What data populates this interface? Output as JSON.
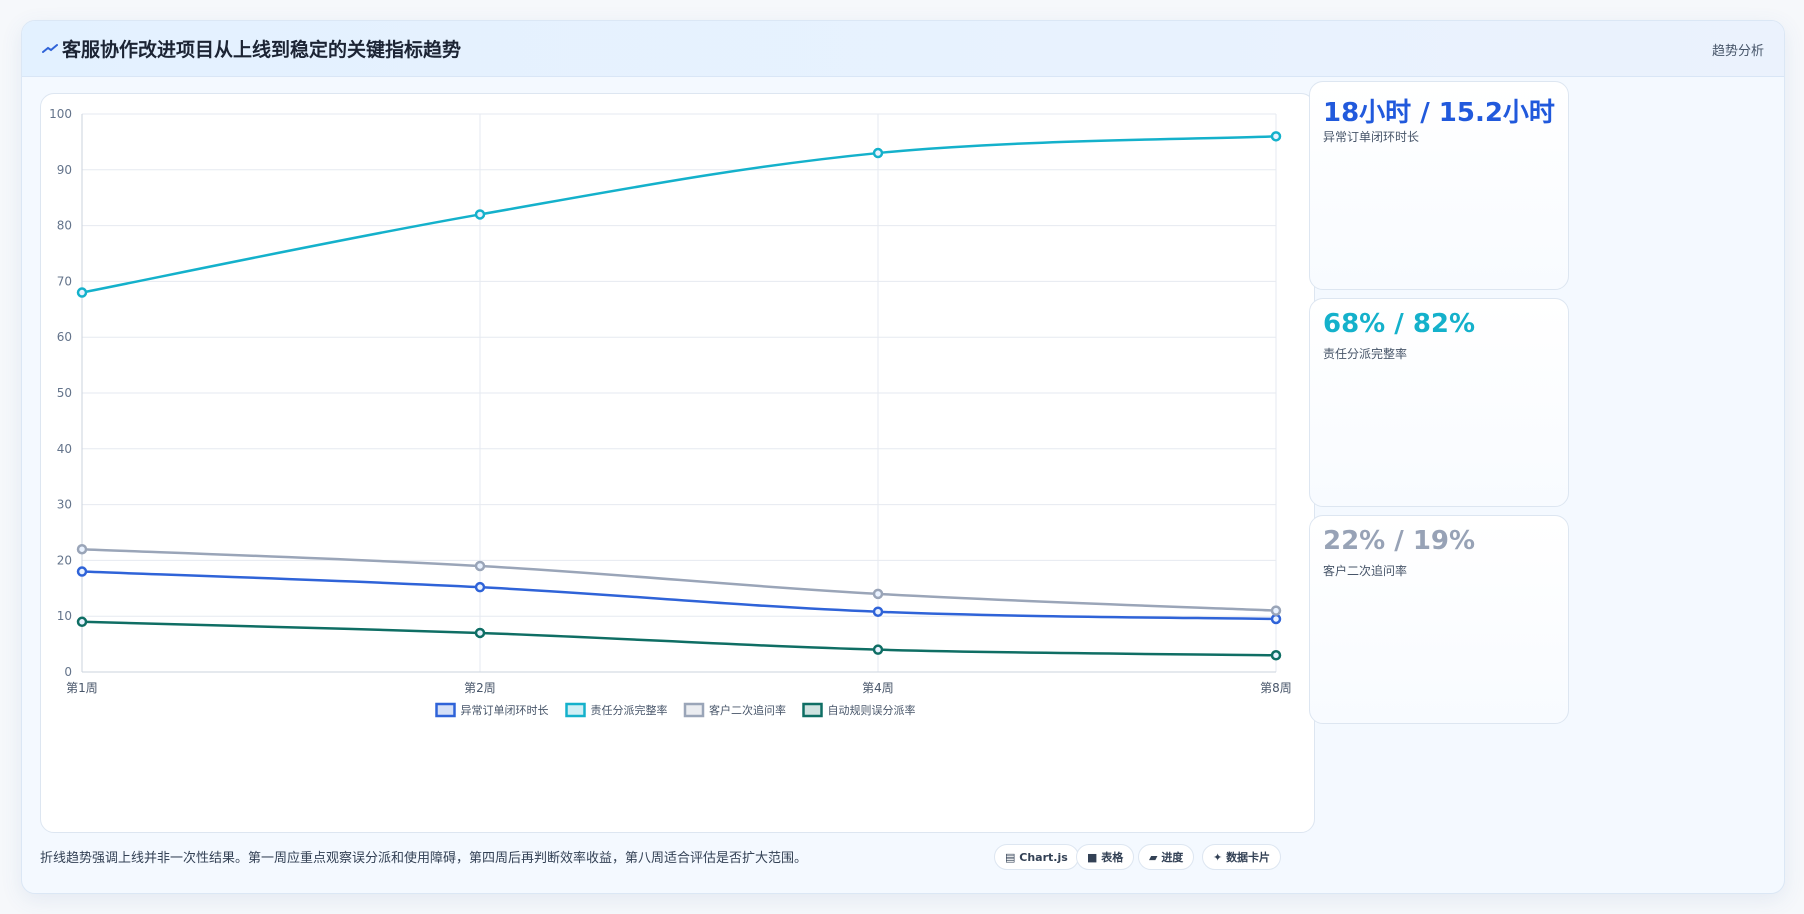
{
  "header": {
    "icon": "chart-line-icon",
    "title": "客服协作改进项目从上线到稳定的关键指标趋势",
    "right_label": "趋势分析"
  },
  "chart_data": {
    "type": "line",
    "categories": [
      "第1周",
      "第2周",
      "第4周",
      "第8周"
    ],
    "ylim": [
      0,
      100
    ],
    "yticks": [
      0,
      10,
      20,
      30,
      40,
      50,
      60,
      70,
      80,
      90,
      100
    ],
    "grid": true,
    "legend_position": "bottom",
    "series": [
      {
        "name": "异常订单闭环时长",
        "color": "#2f63d8",
        "values": [
          18,
          15.2,
          10.8,
          9.5
        ]
      },
      {
        "name": "责任分派完整率",
        "color": "#14b1cb",
        "values": [
          68,
          82,
          93,
          96
        ]
      },
      {
        "name": "客户二次追问率",
        "color": "#9aa5b8",
        "values": [
          22,
          19,
          14,
          11
        ]
      },
      {
        "name": "自动规则误分派率",
        "color": "#0f6e64",
        "values": [
          9,
          7,
          4,
          3
        ]
      }
    ]
  },
  "kpis": [
    {
      "value": "18小时 / 15.2小时",
      "label": "异常订单闭环时长",
      "color": "#2159dc"
    },
    {
      "value": "68% / 82%",
      "label": "责任分派完整率",
      "color": "#14b1cb"
    },
    {
      "value": "22% / 19%",
      "label": "客户二次追问率",
      "color": "#97a2b6"
    }
  ],
  "footer": {
    "note": "折线趋势强调上线并非一次性结果。第一周应重点观察误分派和使用障碍，第四周后再判断效率收益，第八周适合评估是否扩大范围。",
    "chips": [
      {
        "icon": "chart-icon",
        "glyph": "▤",
        "label": "Chart.js"
      },
      {
        "icon": "table-icon",
        "glyph": "■",
        "label": "表格"
      },
      {
        "icon": "progress-icon",
        "glyph": "▰",
        "label": "进度"
      },
      {
        "icon": "card-icon",
        "glyph": "✦",
        "label": "数据卡片"
      }
    ]
  }
}
